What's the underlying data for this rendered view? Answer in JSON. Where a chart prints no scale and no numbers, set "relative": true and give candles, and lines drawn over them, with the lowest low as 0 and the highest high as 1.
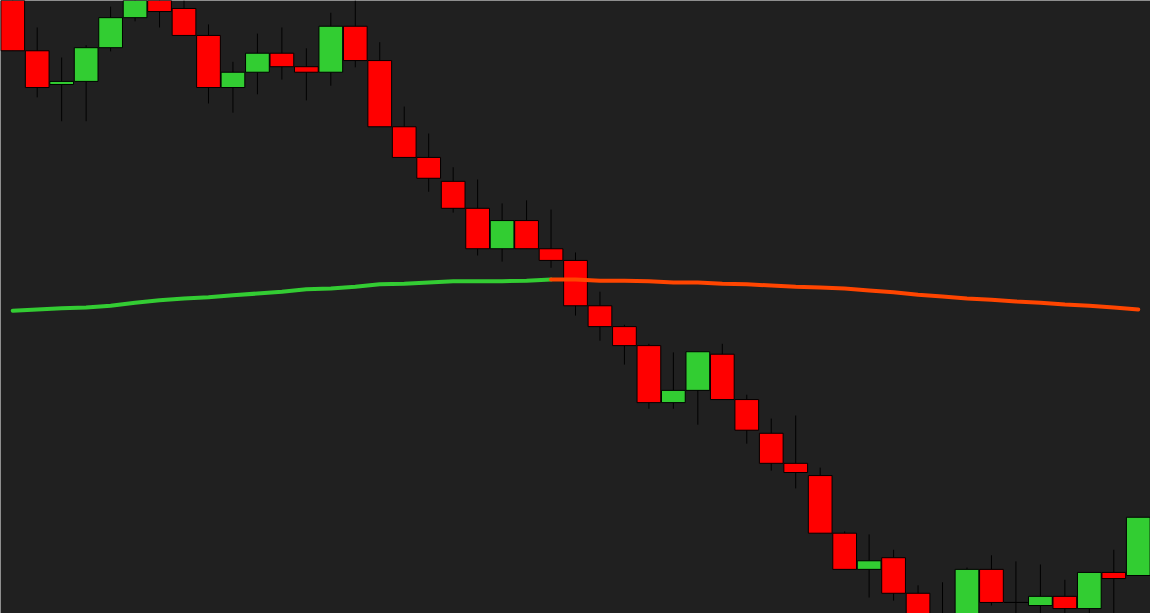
{
  "chart_data": {
    "type": "candlestick",
    "relative": true,
    "tick_labels": false,
    "categories": [
      null,
      null,
      null,
      null,
      null,
      null,
      null,
      null,
      null,
      null,
      null,
      null,
      null,
      null,
      null,
      null,
      null,
      null,
      null,
      null,
      null,
      null,
      null,
      null,
      null,
      null,
      null,
      null,
      null,
      null,
      null,
      null,
      null,
      null,
      null,
      null,
      null,
      null,
      null,
      null,
      null,
      null,
      null,
      null,
      null,
      null,
      null
    ],
    "ohlc": [
      [
        1,
        1,
        0.918,
        0.918
      ],
      [
        0.918,
        0.956,
        0.842,
        0.858
      ],
      [
        0.863,
        0.907,
        0.803,
        0.868
      ],
      [
        0.868,
        0.927,
        0.803,
        0.923
      ],
      [
        0.923,
        0.99,
        0.917,
        0.972
      ],
      [
        0.972,
        1,
        0.966,
        1
      ],
      [
        1,
        1,
        0.956,
        0.982
      ],
      [
        0.987,
        1,
        0.943,
        0.943
      ],
      [
        0.943,
        0.961,
        0.832,
        0.858
      ],
      [
        0.858,
        0.9,
        0.817,
        0.883
      ],
      [
        0.883,
        0.946,
        0.847,
        0.914
      ],
      [
        0.914,
        0.956,
        0.871,
        0.892
      ],
      [
        0.892,
        0.922,
        0.837,
        0.883
      ],
      [
        0.883,
        0.98,
        0.861,
        0.958
      ],
      [
        0.958,
        1,
        0.891,
        0.902
      ],
      [
        0.902,
        0.932,
        0.794,
        0.794
      ],
      [
        0.794,
        0.827,
        0.744,
        0.744
      ],
      [
        0.744,
        0.783,
        0.688,
        0.71
      ],
      [
        0.705,
        0.728,
        0.654,
        0.661
      ],
      [
        0.661,
        0.708,
        0.584,
        0.595
      ],
      [
        0.595,
        0.669,
        0.574,
        0.641
      ],
      [
        0.641,
        0.674,
        0.595,
        0.595
      ],
      [
        0.595,
        0.659,
        0.564,
        0.576
      ],
      [
        0.576,
        0.589,
        0.486,
        0.502
      ],
      [
        0.502,
        0.525,
        0.445,
        0.468
      ],
      [
        0.468,
        0.471,
        0.406,
        0.437
      ],
      [
        0.437,
        0.44,
        0.334,
        0.344
      ],
      [
        0.344,
        0.426,
        0.334,
        0.364
      ],
      [
        0.364,
        0.427,
        0.308,
        0.427
      ],
      [
        0.423,
        0.44,
        0.349,
        0.349
      ],
      [
        0.349,
        0.357,
        0.277,
        0.299
      ],
      [
        0.294,
        0.318,
        0.233,
        0.245
      ],
      [
        0.245,
        0.323,
        0.204,
        0.23
      ],
      [
        0.225,
        0.238,
        0.131,
        0.131
      ],
      [
        0.131,
        0.134,
        0.072,
        0.072
      ],
      [
        0.072,
        0.129,
        0.026,
        0.086
      ],
      [
        0.091,
        0.104,
        0.021,
        0.033
      ],
      [
        0.033,
        0.046,
        0,
        0
      ],
      [
        0,
        0.051,
        0,
        0
      ],
      [
        0,
        0.075,
        0,
        0.072
      ],
      [
        0.072,
        0.095,
        0.013,
        0.018
      ],
      [
        0.018,
        0.085,
        0,
        0.018
      ],
      [
        0.013,
        0.08,
        0,
        0.028
      ],
      [
        0.028,
        0.055,
        0,
        0.008
      ],
      [
        0.008,
        0.067,
        0,
        0.067
      ],
      [
        0.067,
        0.104,
        0,
        0.057
      ],
      [
        0.062,
        0.157,
        0.062,
        0.157
      ]
    ],
    "colors": [
      "#ff0000",
      "#ff0000",
      "#32cd32",
      "#32cd32",
      "#32cd32",
      "#32cd32",
      "#ff0000",
      "#ff0000",
      "#ff0000",
      "#32cd32",
      "#32cd32",
      "#ff0000",
      "#ff0000",
      "#32cd32",
      "#ff0000",
      "#ff0000",
      "#ff0000",
      "#ff0000",
      "#ff0000",
      "#ff0000",
      "#32cd32",
      "#ff0000",
      "#ff0000",
      "#ff0000",
      "#ff0000",
      "#ff0000",
      "#ff0000",
      "#32cd32",
      "#32cd32",
      "#ff0000",
      "#ff0000",
      "#ff0000",
      "#ff0000",
      "#ff0000",
      "#ff0000",
      "#32cd32",
      "#ff0000",
      "#ff0000",
      "#000000",
      "#32cd32",
      "#ff0000",
      "#000000",
      "#32cd32",
      "#ff0000",
      "#32cd32",
      "#ff0000",
      "#32cd32"
    ],
    "series": [
      {
        "type": "line",
        "color": "#33cc33",
        "values": [
          0.494,
          0.496,
          0.498,
          0.499,
          0.502,
          0.507,
          0.511,
          0.514,
          0.516,
          0.519,
          0.522,
          0.525,
          0.529,
          0.53,
          0.533,
          0.537,
          0.538,
          0.54,
          0.542,
          0.542,
          0.542,
          0.543,
          0.545,
          null,
          null,
          null,
          null,
          null,
          null,
          null,
          null,
          null,
          null,
          null,
          null,
          null,
          null,
          null,
          null,
          null,
          null,
          null,
          null,
          null,
          null,
          null,
          null
        ]
      },
      {
        "type": "line",
        "color": "#ff4500",
        "values": [
          null,
          null,
          null,
          null,
          null,
          null,
          null,
          null,
          null,
          null,
          null,
          null,
          null,
          null,
          null,
          null,
          null,
          null,
          null,
          null,
          null,
          null,
          0.545,
          0.545,
          0.543,
          0.543,
          0.542,
          0.54,
          0.54,
          0.538,
          0.537,
          0.535,
          0.533,
          0.532,
          0.53,
          0.527,
          0.524,
          0.52,
          0.517,
          0.514,
          0.512,
          0.509,
          0.507,
          0.504,
          0.502,
          0.499,
          0.496
        ]
      }
    ]
  }
}
